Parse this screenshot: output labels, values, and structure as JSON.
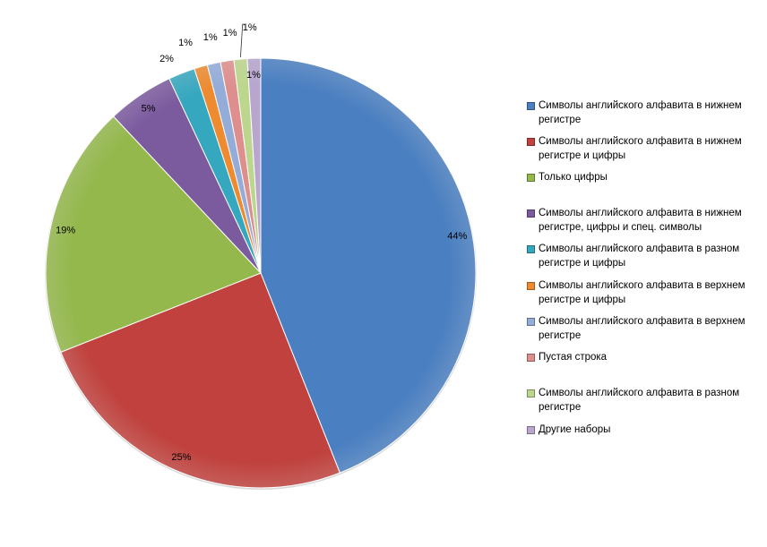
{
  "chart_data": {
    "type": "pie",
    "title": "",
    "legend_position": "right",
    "slices": [
      {
        "label": "Символы английского алфавита  в нижнем регистре",
        "value": 44,
        "value_label": "44%",
        "color": "#4a7fc1"
      },
      {
        "label": "Символы английского алфавита  в нижнем регистре и цифры",
        "value": 25,
        "value_label": "25%",
        "color": "#c0413d"
      },
      {
        "label": "Только цифры",
        "value": 19,
        "value_label": "19%",
        "color": "#94b84c"
      },
      {
        "label": "Символы английского алфавита  в нижнем регистре,  цифры и спец. символы",
        "value": 5,
        "value_label": "5%",
        "color": "#7b5a9e"
      },
      {
        "label": "Символы английского алфавита  в разном регистре и цифры",
        "value": 2,
        "value_label": "2%",
        "color": "#35a7bf"
      },
      {
        "label": "Символы английского алфавита  в верхнем регистре и цифры",
        "value": 1,
        "value_label": "1%",
        "color": "#ee8a2f"
      },
      {
        "label": "Символы английского алфавита  в верхнем регистре",
        "value": 1,
        "value_label": "1%",
        "color": "#93acd8"
      },
      {
        "label": "Пустая строка",
        "value": 1,
        "value_label": "1%",
        "color": "#de8f8d"
      },
      {
        "label": "Символы английского алфавита  в разном регистре",
        "value": 1,
        "value_label": "1%",
        "color": "#bcd68e"
      },
      {
        "label": "Другие наборы",
        "value": 1,
        "value_label": "1%",
        "color": "#b8a6cf"
      }
    ]
  }
}
